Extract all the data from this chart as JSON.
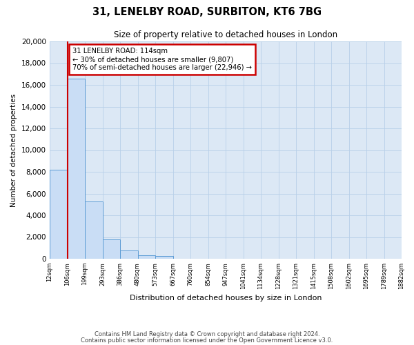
{
  "title": "31, LENELBY ROAD, SURBITON, KT6 7BG",
  "subtitle": "Size of property relative to detached houses in London",
  "xlabel": "Distribution of detached houses by size in London",
  "ylabel": "Number of detached properties",
  "bin_labels": [
    "12sqm",
    "106sqm",
    "199sqm",
    "293sqm",
    "386sqm",
    "480sqm",
    "573sqm",
    "667sqm",
    "760sqm",
    "854sqm",
    "947sqm",
    "1041sqm",
    "1134sqm",
    "1228sqm",
    "1321sqm",
    "1415sqm",
    "1508sqm",
    "1602sqm",
    "1695sqm",
    "1789sqm",
    "1882sqm"
  ],
  "bar_heights": [
    8200,
    16600,
    5300,
    1800,
    750,
    300,
    250,
    0,
    0,
    0,
    0,
    0,
    0,
    0,
    0,
    0,
    0,
    0,
    0,
    0
  ],
  "bar_color": "#c9ddf5",
  "bar_edge_color": "#5b9bd5",
  "ylim": [
    0,
    20000
  ],
  "yticks": [
    0,
    2000,
    4000,
    6000,
    8000,
    10000,
    12000,
    14000,
    16000,
    18000,
    20000
  ],
  "annotation_title": "31 LENELBY ROAD: 114sqm",
  "annotation_line1": "← 30% of detached houses are smaller (9,807)",
  "annotation_line2": "70% of semi-detached houses are larger (22,946) →",
  "annotation_box_color": "#ffffff",
  "annotation_box_edge": "#cc0000",
  "red_line_color": "#cc0000",
  "footer_line1": "Contains HM Land Registry data © Crown copyright and database right 2024.",
  "footer_line2": "Contains public sector information licensed under the Open Government Licence v3.0.",
  "background_color": "#ffffff",
  "plot_bg_color": "#dce8f5",
  "grid_color": "#b8cfe8",
  "fig_width": 6.0,
  "fig_height": 5.0,
  "dpi": 100
}
